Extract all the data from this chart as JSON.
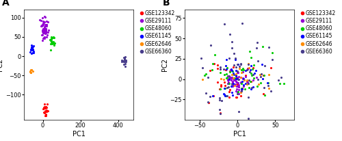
{
  "title_A": "A",
  "title_B": "B",
  "xlabel": "PC1",
  "ylabel": "PC2",
  "datasets": [
    "GSE123342",
    "GSE29111",
    "GSE48060",
    "GSE61145",
    "GSE62646",
    "GSE66360"
  ],
  "colors": [
    "#FF0000",
    "#9400D3",
    "#00CC00",
    "#0000FF",
    "#FF8C00",
    "#483D8B"
  ],
  "panel_A": {
    "xlim": [
      -100,
      480
    ],
    "ylim": [
      -165,
      120
    ],
    "xticks": [
      0,
      200,
      400
    ],
    "yticks": [
      -100,
      -50,
      0,
      50,
      100
    ],
    "clusters": {
      "GSE123342": {
        "x_center": 12,
        "y_center": -135,
        "x_std": 5,
        "y_std": 8,
        "n": 25
      },
      "GSE29111": {
        "x_center": 8,
        "y_center": 72,
        "x_std": 10,
        "y_std": 14,
        "n": 65
      },
      "GSE48060": {
        "x_center": 50,
        "y_center": 38,
        "x_std": 8,
        "y_std": 8,
        "n": 20
      },
      "GSE61145": {
        "x_center": -55,
        "y_center": 18,
        "x_std": 5,
        "y_std": 8,
        "n": 18
      },
      "GSE62646": {
        "x_center": -62,
        "y_center": -38,
        "x_std": 4,
        "y_std": 5,
        "n": 8
      },
      "GSE66360": {
        "x_center": 435,
        "y_center": -12,
        "x_std": 6,
        "y_std": 6,
        "n": 18
      }
    }
  },
  "panel_B": {
    "xlim": [
      -70,
      75
    ],
    "ylim": [
      -50,
      85
    ],
    "xticks": [
      -50,
      0,
      50
    ],
    "yticks": [
      -25,
      0,
      25,
      50,
      75
    ],
    "clusters": {
      "GSE123342": {
        "x_center": -8,
        "y_center": -5,
        "x_std": 20,
        "y_std": 15,
        "n": 35
      },
      "GSE29111": {
        "x_center": -2,
        "y_center": -2,
        "x_std": 7,
        "y_std": 7,
        "n": 55
      },
      "GSE48060": {
        "x_center": 2,
        "y_center": 3,
        "x_std": 26,
        "y_std": 16,
        "n": 45
      },
      "GSE61145": {
        "x_center": 3,
        "y_center": 0,
        "x_std": 20,
        "y_std": 13,
        "n": 40
      },
      "GSE62646": {
        "x_center": 5,
        "y_center": 4,
        "x_std": 18,
        "y_std": 12,
        "n": 20
      },
      "GSE66360": {
        "x_center": 0,
        "y_center": 2,
        "x_std": 28,
        "y_std": 25,
        "n": 65
      }
    }
  },
  "marker_size": 5,
  "tick_fontsize": 6,
  "label_fontsize": 7,
  "legend_fontsize": 5.5,
  "panel_title_fontsize": 10
}
